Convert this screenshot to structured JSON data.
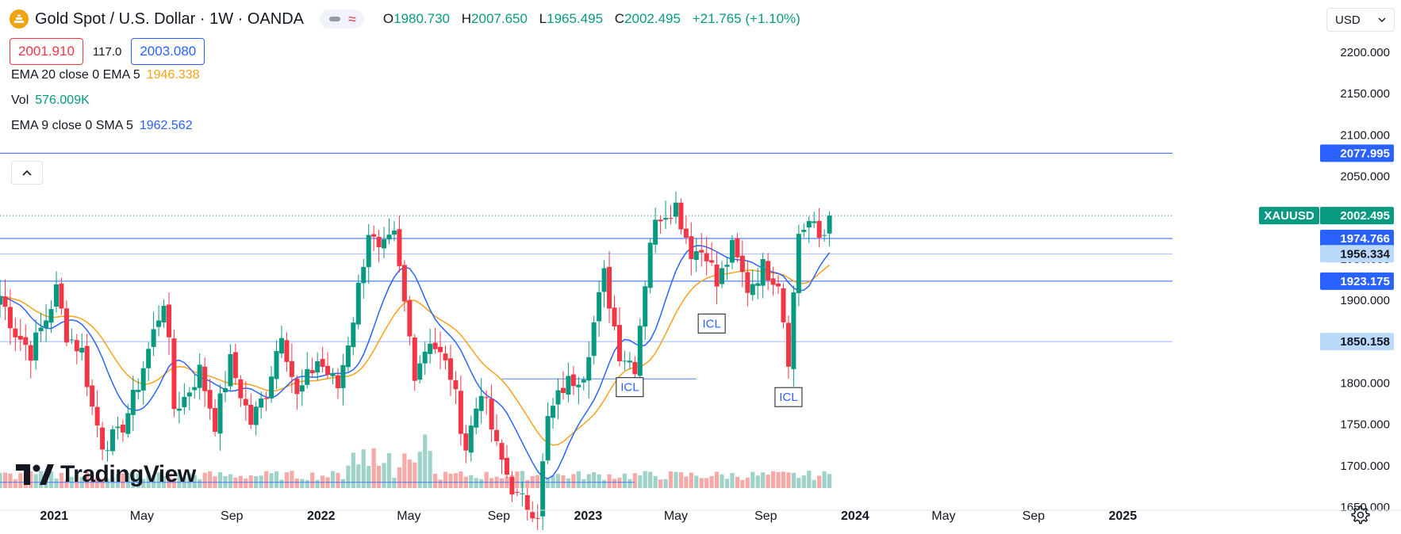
{
  "header": {
    "symbol_title": "Gold Spot / U.S. Dollar · 1W · OANDA",
    "ohlc": {
      "open_label": "O",
      "open": "1980.730",
      "high_label": "H",
      "high": "2007.650",
      "low_label": "L",
      "low": "1965.495",
      "close_label": "C",
      "close": "2002.495",
      "change": "+21.765 (+1.10%)"
    },
    "bid": "2001.910",
    "spread": "117.0",
    "ask": "2003.080"
  },
  "legend": {
    "ema20_label": "EMA 20 close 0 EMA 5",
    "ema20_value": "1946.338",
    "vol_label": "Vol",
    "vol_value": "576.009K",
    "ema9_label": "EMA 9 close 0 SMA 5",
    "ema9_value": "1962.562"
  },
  "currency": {
    "label": "USD"
  },
  "brand": {
    "name": "TradingView"
  },
  "colors": {
    "up": "#089981",
    "down": "#f23645",
    "ema_fast": "#2962ff",
    "ema_slow": "#f7a21b",
    "level": "#2962ff",
    "price_tag": "#089981",
    "vol_up": "#9fd3c9",
    "vol_down": "#f7a9a7"
  },
  "icons": [
    "gold-coin-icon",
    "chevron-up-icon",
    "chevron-down-icon",
    "gear-icon",
    "tradingview-logo-icon"
  ],
  "chart_data": {
    "type": "candlestick",
    "symbol": "XAUUSD",
    "interval": "1W",
    "ylim": [
      1630,
      2240
    ],
    "y_ticks": [
      1650,
      1700,
      1750,
      1800,
      1850,
      1900,
      1950,
      2000,
      2050,
      2100,
      2150,
      2200
    ],
    "y_tick_labels": [
      "1650.000",
      "1700.000",
      "1750.000",
      "1800.000",
      "1850.000",
      "1900.000",
      "1950.000",
      "2000.000",
      "2050.000",
      "2100.000",
      "2150.000",
      "2200.000"
    ],
    "time_range": [
      "2020-10-19",
      "2025-03-10"
    ],
    "x_ticks": [
      {
        "date": "2021-01-01",
        "label": "2021",
        "bold": true
      },
      {
        "date": "2021-05-01",
        "label": "May",
        "bold": false
      },
      {
        "date": "2021-09-01",
        "label": "Sep",
        "bold": false
      },
      {
        "date": "2022-01-01",
        "label": "2022",
        "bold": true
      },
      {
        "date": "2022-05-01",
        "label": "May",
        "bold": false
      },
      {
        "date": "2022-09-01",
        "label": "Sep",
        "bold": false
      },
      {
        "date": "2023-01-01",
        "label": "2023",
        "bold": true
      },
      {
        "date": "2023-05-01",
        "label": "May",
        "bold": false
      },
      {
        "date": "2023-09-01",
        "label": "Sep",
        "bold": false
      },
      {
        "date": "2024-01-01",
        "label": "2024",
        "bold": true
      },
      {
        "date": "2024-05-01",
        "label": "May",
        "bold": false
      },
      {
        "date": "2024-09-01",
        "label": "Sep",
        "bold": false
      },
      {
        "date": "2025-01-01",
        "label": "2025",
        "bold": true
      }
    ],
    "anchors": [
      [
        "2020-10-19",
        1905
      ],
      [
        "2020-11-09",
        1862
      ],
      [
        "2020-11-30",
        1838
      ],
      [
        "2020-12-21",
        1878
      ],
      [
        "2021-01-04",
        1912
      ],
      [
        "2021-01-18",
        1860
      ],
      [
        "2021-02-08",
        1838
      ],
      [
        "2021-02-22",
        1770
      ],
      [
        "2021-03-08",
        1728
      ],
      [
        "2021-03-29",
        1735
      ],
      [
        "2021-04-19",
        1780
      ],
      [
        "2021-05-10",
        1840
      ],
      [
        "2021-06-01",
        1905
      ],
      [
        "2021-06-14",
        1770
      ],
      [
        "2021-06-28",
        1782
      ],
      [
        "2021-07-19",
        1815
      ],
      [
        "2021-08-09",
        1752
      ],
      [
        "2021-08-30",
        1825
      ],
      [
        "2021-09-27",
        1752
      ],
      [
        "2021-10-18",
        1790
      ],
      [
        "2021-11-08",
        1865
      ],
      [
        "2021-11-29",
        1782
      ],
      [
        "2021-12-27",
        1828
      ],
      [
        "2022-01-24",
        1795
      ],
      [
        "2022-02-14",
        1880
      ],
      [
        "2022-03-07",
        1985
      ],
      [
        "2022-03-21",
        1955
      ],
      [
        "2022-04-11",
        1975
      ],
      [
        "2022-04-25",
        1895
      ],
      [
        "2022-05-09",
        1815
      ],
      [
        "2022-05-30",
        1855
      ],
      [
        "2022-06-27",
        1810
      ],
      [
        "2022-07-18",
        1722
      ],
      [
        "2022-08-08",
        1795
      ],
      [
        "2022-08-29",
        1720
      ],
      [
        "2022-09-26",
        1660
      ],
      [
        "2022-10-24",
        1645
      ],
      [
        "2022-11-07",
        1755
      ],
      [
        "2022-11-28",
        1795
      ],
      [
        "2022-12-26",
        1815
      ],
      [
        "2023-01-23",
        1930
      ],
      [
        "2023-02-13",
        1838
      ],
      [
        "2023-03-06",
        1822
      ],
      [
        "2023-03-27",
        1975
      ],
      [
        "2023-04-10",
        2005
      ],
      [
        "2023-05-01",
        2015
      ],
      [
        "2023-05-22",
        1960
      ],
      [
        "2023-06-12",
        1960
      ],
      [
        "2023-06-26",
        1918
      ],
      [
        "2023-07-17",
        1962
      ],
      [
        "2023-08-07",
        1915
      ],
      [
        "2023-08-28",
        1940
      ],
      [
        "2023-09-18",
        1925
      ],
      [
        "2023-10-02",
        1832
      ],
      [
        "2023-10-16",
        1982
      ],
      [
        "2023-10-30",
        1995
      ],
      [
        "2023-11-13",
        1975
      ],
      [
        "2023-11-20",
        1981
      ],
      [
        "2023-11-27",
        2002.495
      ]
    ],
    "last_candle": {
      "open": 1980.73,
      "high": 2007.65,
      "low": 1965.495,
      "close": 2002.495
    },
    "series": [
      {
        "name": "EMA 20 close 0 EMA 5",
        "color": "#f7a21b",
        "last": 1946.338
      },
      {
        "name": "EMA 9 close 0 SMA 5",
        "color": "#2962ff",
        "last": 1962.562
      },
      {
        "name": "Vol",
        "last": "576.009K"
      }
    ],
    "levels": [
      {
        "price": 2077.995,
        "label": "2077.995",
        "style": "solid-tag"
      },
      {
        "price": 1974.766,
        "label": "1974.766",
        "style": "solid-tag"
      },
      {
        "price": 1956.334,
        "label": "1956.334",
        "style": "light-tag"
      },
      {
        "price": 1923.175,
        "label": "1923.175",
        "style": "solid-tag"
      },
      {
        "price": 1850.158,
        "label": "1850.158",
        "style": "light-tag"
      }
    ],
    "partial_levels": [
      {
        "price": 1805,
        "from": "2022-09-05",
        "to": "2023-05-29"
      },
      {
        "price": 1680,
        "from": "2020-10-19",
        "to": "2023-03-06"
      }
    ],
    "current_price": {
      "symbol": "XAUUSD",
      "label": "2002.495",
      "price": 2002.495
    },
    "annotations": [
      {
        "text": "ICL",
        "date": "2023-02-27",
        "price": 1795
      },
      {
        "text": "ICL",
        "date": "2023-06-19",
        "price": 1872
      },
      {
        "text": "ICL",
        "date": "2023-10-02",
        "price": 1783
      }
    ]
  }
}
